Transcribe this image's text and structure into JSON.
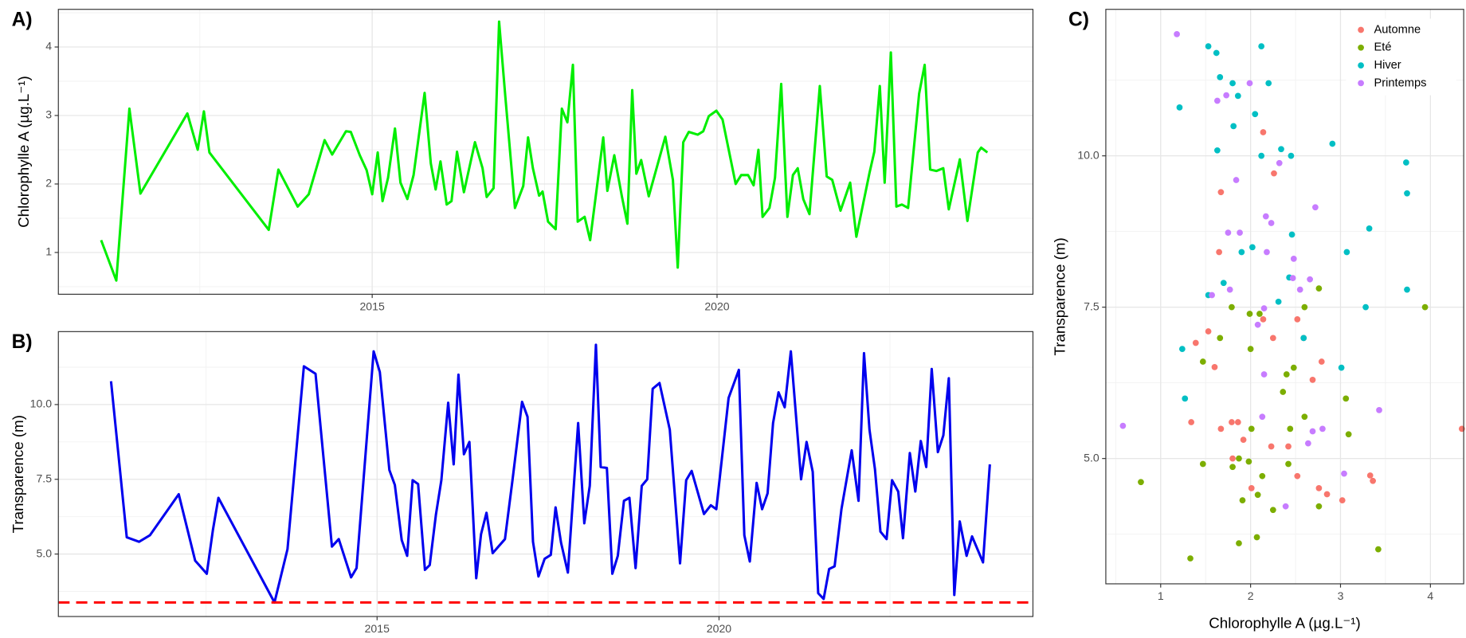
{
  "chart_data": [
    {
      "type": "line",
      "tag": "A)",
      "y_label": "Chlorophylle A (µg.L⁻¹)",
      "color": "#00ee00",
      "grid": true,
      "xlim": [
        2010.45,
        2024.58
      ],
      "xticks": [
        2015,
        2020
      ],
      "ylim": [
        0.39,
        4.55
      ],
      "yticks": [
        1,
        2,
        3,
        4
      ],
      "x": [
        2011.07,
        2011.29,
        2011.48,
        2011.64,
        2012.32,
        2012.47,
        2012.56,
        2012.64,
        2013.5,
        2013.64,
        2013.92,
        2014.08,
        2014.31,
        2014.42,
        2014.62,
        2014.69,
        2014.82,
        2014.92,
        2015.0,
        2015.08,
        2015.15,
        2015.23,
        2015.33,
        2015.41,
        2015.51,
        2015.6,
        2015.76,
        2015.85,
        2015.92,
        2015.99,
        2016.08,
        2016.15,
        2016.23,
        2016.33,
        2016.49,
        2016.6,
        2016.66,
        2016.76,
        2016.84,
        2016.93,
        2017.07,
        2017.19,
        2017.26,
        2017.33,
        2017.42,
        2017.47,
        2017.55,
        2017.66,
        2017.75,
        2017.83,
        2017.91,
        2017.98,
        2018.08,
        2018.16,
        2018.35,
        2018.41,
        2018.51,
        2018.62,
        2018.7,
        2018.77,
        2018.83,
        2018.9,
        2019.01,
        2019.25,
        2019.36,
        2019.43,
        2019.51,
        2019.59,
        2019.72,
        2019.8,
        2019.88,
        2019.99,
        2020.08,
        2020.27,
        2020.35,
        2020.45,
        2020.53,
        2020.6,
        2020.66,
        2020.76,
        2020.84,
        2020.93,
        2021.02,
        2021.1,
        2021.17,
        2021.25,
        2021.34,
        2021.49,
        2021.59,
        2021.67,
        2021.79,
        2021.93,
        2022.02,
        2022.21,
        2022.28,
        2022.36,
        2022.43,
        2022.52,
        2022.6,
        2022.68,
        2022.77,
        2022.93,
        2023.01,
        2023.09,
        2023.18,
        2023.28,
        2023.36,
        2023.52,
        2023.63,
        2023.78,
        2023.83,
        2023.92
      ],
      "values": [
        1.18,
        0.59,
        3.1,
        1.86,
        3.03,
        2.5,
        3.06,
        2.46,
        1.33,
        2.21,
        1.67,
        1.85,
        2.64,
        2.43,
        2.77,
        2.76,
        2.42,
        2.2,
        1.85,
        2.46,
        1.75,
        2.09,
        2.81,
        2.02,
        1.78,
        2.13,
        3.33,
        2.3,
        1.92,
        2.33,
        1.7,
        1.75,
        2.47,
        1.88,
        2.61,
        2.23,
        1.81,
        1.94,
        4.37,
        3.28,
        1.65,
        1.97,
        2.68,
        2.23,
        1.83,
        1.89,
        1.45,
        1.34,
        3.1,
        2.9,
        3.74,
        1.45,
        1.52,
        1.18,
        2.68,
        1.9,
        2.42,
        1.82,
        1.42,
        3.37,
        2.15,
        2.35,
        1.82,
        2.69,
        2.06,
        0.78,
        2.61,
        2.76,
        2.72,
        2.77,
        2.99,
        3.07,
        2.94,
        2.0,
        2.13,
        2.13,
        1.98,
        2.5,
        1.52,
        1.65,
        2.09,
        3.46,
        1.52,
        2.13,
        2.23,
        1.78,
        1.56,
        3.43,
        2.11,
        2.06,
        1.61,
        2.02,
        1.23,
        2.16,
        2.47,
        3.43,
        2.02,
        3.92,
        1.67,
        1.7,
        1.65,
        3.32,
        3.74,
        2.21,
        2.19,
        2.23,
        1.63,
        2.36,
        1.46,
        2.46,
        2.53,
        2.46
      ]
    },
    {
      "type": "line",
      "tag": "B)",
      "y_label": "Transparence (m)",
      "color": "#0000ee",
      "grid": true,
      "xlim": [
        2010.34,
        2024.59
      ],
      "xticks": [
        2015,
        2020
      ],
      "ylim": [
        2.91,
        12.44
      ],
      "yticks": [
        {
          "value": 5,
          "label": "5.0"
        },
        7.5,
        {
          "value": 10,
          "label": "10.0"
        }
      ],
      "hline": {
        "value": 3.38,
        "color": "#ff0000",
        "dashed": true
      },
      "x": [
        2011.11,
        2011.34,
        2011.52,
        2011.68,
        2012.1,
        2012.34,
        2012.51,
        2012.6,
        2012.68,
        2013.5,
        2013.69,
        2013.93,
        2014.1,
        2014.34,
        2014.44,
        2014.62,
        2014.7,
        2014.95,
        2015.04,
        2015.18,
        2015.26,
        2015.36,
        2015.44,
        2015.52,
        2015.6,
        2015.7,
        2015.77,
        2015.86,
        2015.94,
        2016.04,
        2016.12,
        2016.19,
        2016.27,
        2016.35,
        2016.45,
        2016.52,
        2016.6,
        2016.69,
        2016.87,
        2016.98,
        2017.12,
        2017.2,
        2017.28,
        2017.36,
        2017.45,
        2017.54,
        2017.61,
        2017.69,
        2017.79,
        2017.94,
        2018.03,
        2018.11,
        2018.2,
        2018.27,
        2018.36,
        2018.44,
        2018.52,
        2018.61,
        2018.69,
        2018.78,
        2018.87,
        2018.95,
        2019.03,
        2019.13,
        2019.28,
        2019.43,
        2019.52,
        2019.6,
        2019.78,
        2019.88,
        2019.96,
        2020.14,
        2020.29,
        2020.37,
        2020.45,
        2020.55,
        2020.63,
        2020.71,
        2020.79,
        2020.87,
        2020.96,
        2021.05,
        2021.2,
        2021.28,
        2021.37,
        2021.45,
        2021.53,
        2021.61,
        2021.69,
        2021.79,
        2021.94,
        2022.04,
        2022.12,
        2022.2,
        2022.28,
        2022.36,
        2022.45,
        2022.53,
        2022.62,
        2022.69,
        2022.79,
        2022.87,
        2022.95,
        2023.03,
        2023.11,
        2023.2,
        2023.28,
        2023.36,
        2023.44,
        2023.52,
        2023.62,
        2023.7,
        2023.86,
        2023.96
      ],
      "values": [
        10.78,
        5.56,
        5.41,
        5.63,
        7.0,
        4.78,
        4.34,
        5.81,
        6.88,
        3.38,
        5.16,
        11.28,
        11.03,
        5.25,
        5.5,
        4.22,
        4.53,
        11.78,
        11.09,
        7.81,
        7.31,
        5.47,
        4.94,
        7.47,
        7.34,
        4.47,
        4.63,
        6.31,
        7.47,
        10.06,
        8.0,
        11.0,
        8.34,
        8.75,
        4.19,
        5.66,
        6.38,
        5.03,
        5.5,
        7.47,
        10.09,
        9.59,
        5.41,
        4.25,
        4.84,
        4.97,
        6.56,
        5.38,
        4.38,
        9.38,
        6.03,
        7.28,
        12.0,
        7.91,
        7.88,
        4.34,
        4.94,
        6.78,
        6.88,
        4.53,
        7.28,
        7.5,
        10.53,
        10.72,
        9.16,
        4.69,
        7.47,
        7.78,
        6.34,
        6.63,
        6.5,
        10.22,
        11.16,
        5.63,
        4.75,
        7.38,
        6.5,
        7.03,
        9.38,
        10.41,
        9.91,
        11.78,
        7.5,
        8.75,
        7.75,
        3.69,
        3.5,
        4.5,
        4.59,
        6.5,
        8.47,
        6.78,
        11.72,
        9.16,
        7.84,
        5.75,
        5.5,
        7.47,
        7.09,
        5.53,
        8.38,
        7.09,
        8.78,
        7.91,
        11.19,
        8.41,
        8.97,
        10.88,
        3.63,
        6.09,
        4.94,
        5.59,
        4.72,
        8.0
      ]
    },
    {
      "type": "scatter",
      "tag": "C)",
      "x_label": "Chlorophylle A (µg.L⁻¹)",
      "y_label": "Transparence (m)",
      "grid": true,
      "legend": "top-right",
      "xlim": [
        0.39,
        4.37
      ],
      "xticks": [
        1,
        2,
        3,
        4
      ],
      "ylim": [
        2.93,
        12.42
      ],
      "yticks": [
        {
          "value": 5,
          "label": "5.0"
        },
        7.5,
        {
          "value": 10,
          "label": "10.0"
        }
      ],
      "series": [
        {
          "name": "Automne",
          "color": "#F8766D",
          "x": [
            2.14,
            2.26,
            1.67,
            1.65,
            2.14,
            2.52,
            1.53,
            1.39,
            2.25,
            2.59,
            1.6,
            2.79,
            2.69,
            1.34,
            1.79,
            1.86,
            1.67,
            1.92,
            2.23,
            2.42,
            1.8,
            2.52,
            2.01,
            2.76,
            2.85,
            3.02,
            3.33,
            3.36,
            4.35
          ],
          "values": [
            10.39,
            9.71,
            9.4,
            8.41,
            7.3,
            7.3,
            7.1,
            6.91,
            6.99,
            6.99,
            6.51,
            6.6,
            6.3,
            5.6,
            5.6,
            5.6,
            5.49,
            5.31,
            5.2,
            5.2,
            5.0,
            4.71,
            4.51,
            4.51,
            4.41,
            4.31,
            4.72,
            4.63,
            5.49
          ]
        },
        {
          "name": "Eté",
          "color": "#7CAE00",
          "x": [
            3.94,
            1.79,
            1.99,
            2.1,
            2.6,
            2.76,
            1.66,
            2.0,
            1.47,
            2.48,
            2.4,
            2.36,
            3.06,
            2.6,
            2.01,
            2.44,
            3.09,
            1.87,
            1.98,
            1.47,
            2.42,
            1.8,
            2.13,
            2.08,
            0.78,
            1.91,
            2.25,
            2.76,
            2.07,
            1.87,
            3.42,
            1.33
          ],
          "values": [
            7.5,
            7.5,
            7.39,
            7.39,
            7.5,
            7.81,
            6.99,
            6.81,
            6.6,
            6.5,
            6.39,
            6.1,
            5.99,
            5.69,
            5.49,
            5.49,
            5.4,
            5.0,
            4.95,
            4.91,
            4.91,
            4.86,
            4.71,
            4.4,
            4.61,
            4.31,
            4.15,
            4.21,
            3.7,
            3.6,
            3.5,
            3.35
          ]
        },
        {
          "name": "Hiver",
          "color": "#00BFC4",
          "x": [
            1.53,
            2.12,
            1.62,
            1.66,
            1.8,
            2.2,
            1.86,
            1.21,
            2.05,
            1.81,
            2.91,
            2.34,
            1.63,
            2.12,
            2.45,
            3.73,
            3.74,
            3.32,
            2.46,
            2.02,
            1.9,
            3.07,
            2.43,
            1.7,
            3.74,
            1.53,
            2.31,
            3.28,
            2.59,
            1.24,
            3.01,
            1.27
          ],
          "values": [
            11.81,
            11.81,
            11.7,
            11.3,
            11.2,
            11.2,
            10.99,
            10.8,
            10.69,
            10.49,
            10.2,
            10.11,
            10.09,
            10.0,
            10.0,
            9.89,
            9.38,
            8.8,
            8.7,
            8.49,
            8.41,
            8.41,
            7.99,
            7.9,
            7.79,
            7.7,
            7.59,
            7.5,
            6.99,
            6.81,
            6.5,
            5.99
          ]
        },
        {
          "name": "Printemps",
          "color": "#C77CFF",
          "x": [
            1.18,
            1.99,
            1.73,
            1.63,
            2.32,
            1.84,
            2.72,
            2.17,
            2.23,
            1.75,
            1.88,
            2.18,
            2.48,
            2.47,
            2.66,
            1.77,
            2.55,
            1.57,
            2.08,
            2.15,
            2.15,
            3.43,
            2.13,
            0.58,
            2.8,
            2.69,
            2.64,
            3.04,
            2.39
          ],
          "values": [
            12.01,
            11.2,
            11.0,
            10.91,
            9.88,
            9.6,
            9.15,
            9.0,
            8.89,
            8.73,
            8.73,
            8.41,
            8.3,
            7.98,
            7.96,
            7.79,
            7.79,
            7.7,
            7.21,
            7.48,
            6.39,
            5.8,
            5.69,
            5.54,
            5.49,
            5.45,
            5.25,
            4.75,
            4.21
          ]
        }
      ]
    }
  ]
}
